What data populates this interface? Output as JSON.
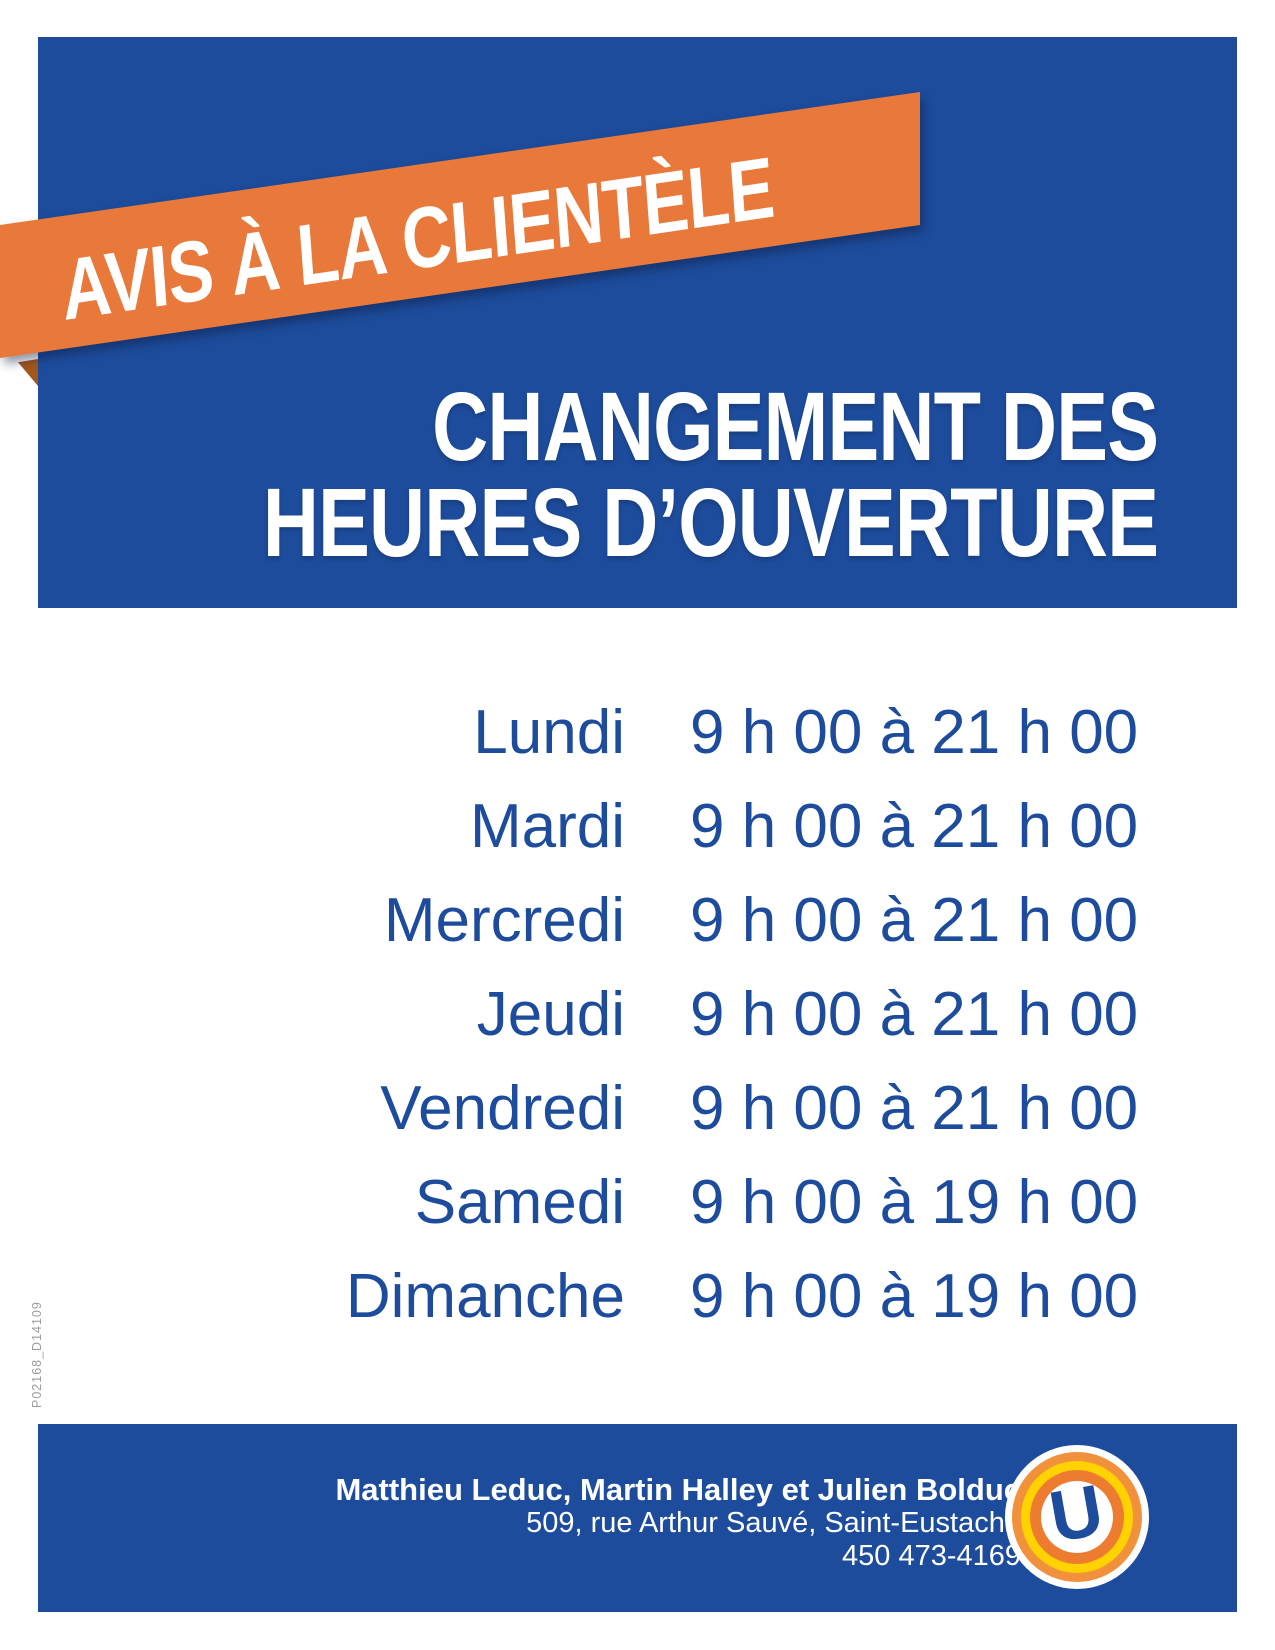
{
  "poster": {
    "banner": {
      "label": "AVIS À LA CLIENTÈLE"
    },
    "title": {
      "line1": "CHANGEMENT DES",
      "line2": "HEURES D’OUVERTURE"
    },
    "schedule": {
      "rows": [
        {
          "day": "Lundi",
          "hours": "9 h 00 à 21 h 00"
        },
        {
          "day": "Mardi",
          "hours": "9 h 00 à 21 h 00"
        },
        {
          "day": "Mercredi",
          "hours": "9 h 00 à 21 h 00"
        },
        {
          "day": "Jeudi",
          "hours": "9 h 00 à 21 h 00"
        },
        {
          "day": "Vendredi",
          "hours": "9 h 00 à 21 h 00"
        },
        {
          "day": "Samedi",
          "hours": "9 h 00 à 19 h 00"
        },
        {
          "day": "Dimanche",
          "hours": "9 h 00 à 19 h 00"
        }
      ]
    },
    "footer": {
      "names": "Matthieu Leduc, Martin Halley et Julien Bolduc",
      "address": "509, rue Arthur Sauvé, Saint-Eustache",
      "phone": "450 473-4169"
    },
    "logo": {
      "letter": "U"
    },
    "print_code": "P02168_D14109",
    "colors": {
      "blue": "#1d4c9c",
      "orange_banner": "#e8793b",
      "orange_fold": "#a2571f",
      "ring_orange_outer": "#f2913c",
      "ring_yellow": "#ffd200",
      "ring_orange_inner": "#ed7c31",
      "code_gray": "#9c9c9c",
      "white": "#ffffff"
    }
  }
}
